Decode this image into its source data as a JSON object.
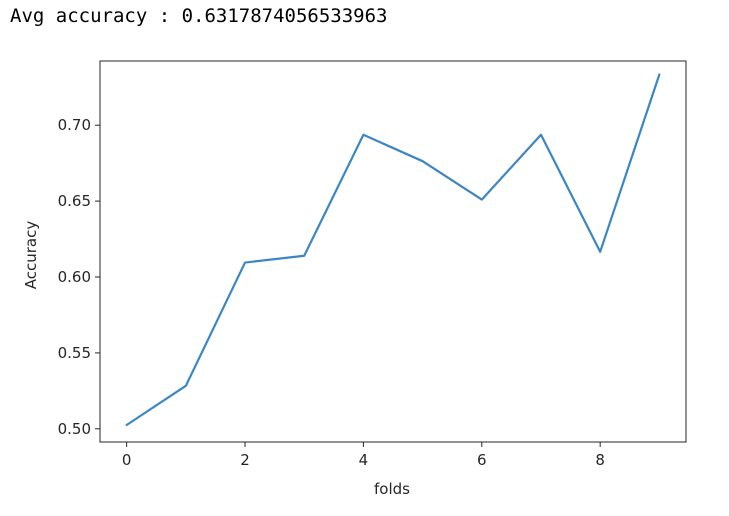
{
  "output": {
    "text": "Avg accuracy : 0.6317874056533963"
  },
  "chart_data": {
    "type": "line",
    "title": "",
    "xlabel": "folds",
    "ylabel": "Accuracy",
    "x": [
      0,
      1,
      2,
      3,
      4,
      5,
      6,
      7,
      8,
      9
    ],
    "series": [
      {
        "values": [
          0.5025,
          0.5283,
          0.6095,
          0.614,
          0.6937,
          0.6763,
          0.651,
          0.6937,
          0.6166,
          0.7334
        ],
        "color": "#3b86c3"
      }
    ],
    "xlim": [
      -0.45,
      9.45
    ],
    "ylim": [
      0.4913,
      0.7423
    ],
    "xticks": [
      0,
      2,
      4,
      6,
      8
    ],
    "xtick_labels": [
      "0",
      "2",
      "4",
      "6",
      "8"
    ],
    "yticks": [
      0.5,
      0.55,
      0.6,
      0.65,
      0.7
    ],
    "ytick_labels": [
      "0.50",
      "0.55",
      "0.60",
      "0.65",
      "0.70"
    ],
    "grid": false,
    "legend": "none"
  }
}
